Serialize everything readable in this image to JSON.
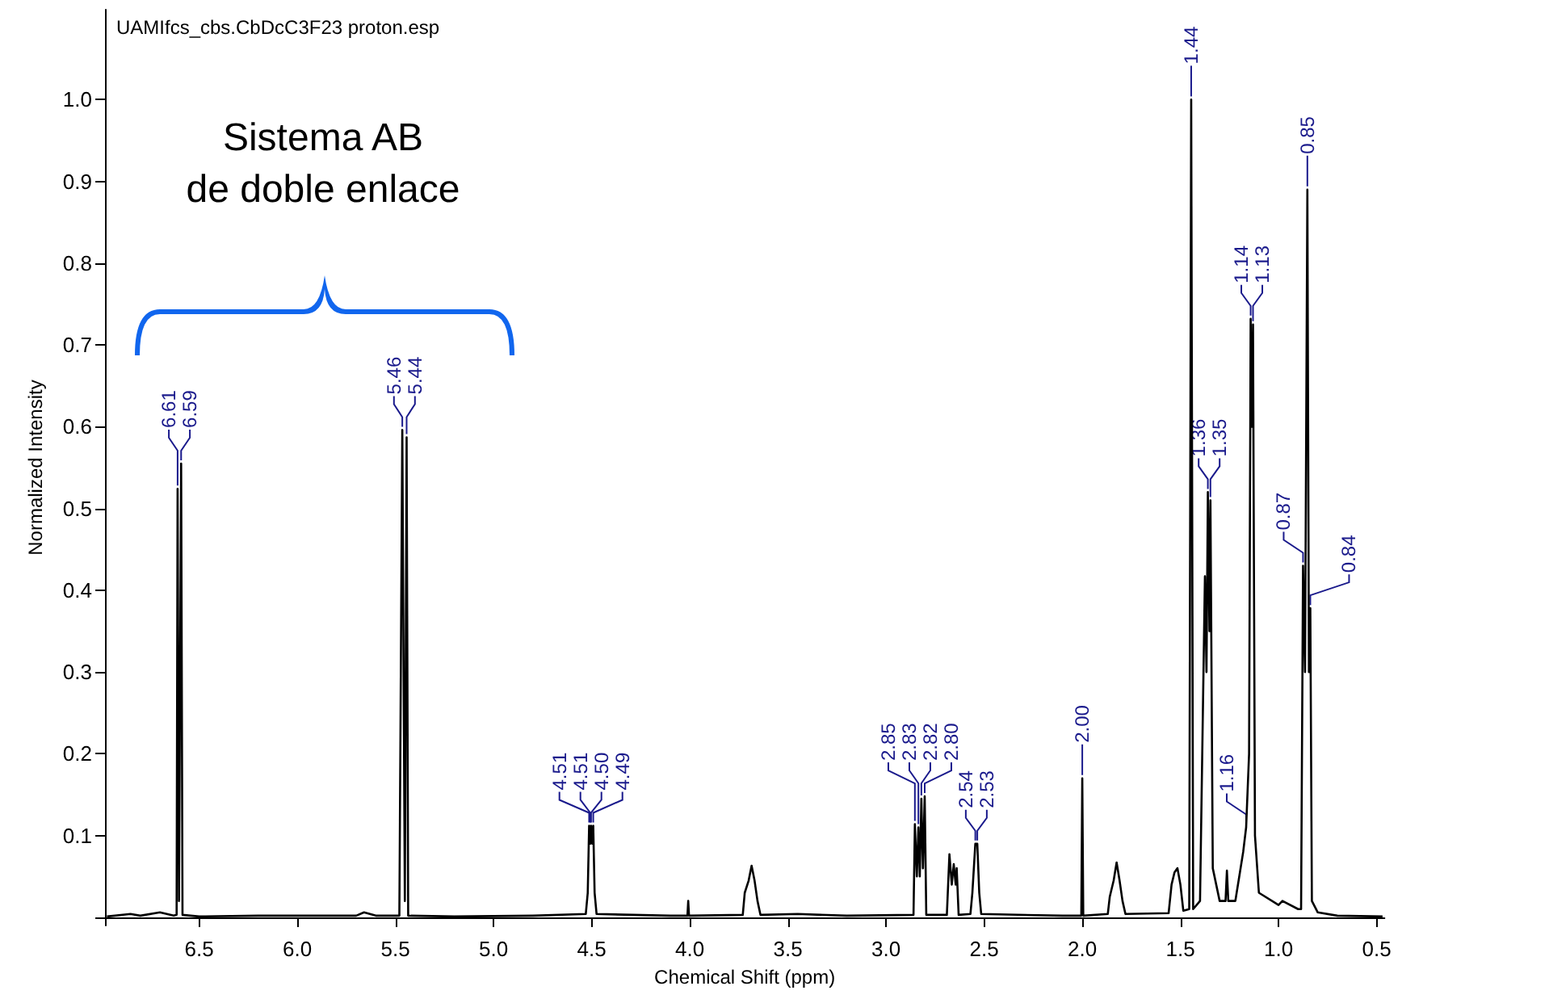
{
  "chart_data": {
    "type": "line",
    "title": "UAMIfcs_cbs.CbDcC3F23 proton.esp",
    "xlabel": "Chemical Shift (ppm)",
    "ylabel": "Normalized Intensity",
    "xlim": [
      6.98,
      0.46
    ],
    "xticks": [
      6.5,
      {
        "value": 6,
        "label": "6.0"
      },
      5.5,
      {
        "value": 5,
        "label": "5.0"
      },
      4.5,
      {
        "value": 4,
        "label": "4.0"
      },
      3.5,
      {
        "value": 3,
        "label": "3.0"
      },
      2.5,
      {
        "value": 2,
        "label": "2.0"
      },
      1.5,
      {
        "value": 1,
        "label": "1.0"
      },
      0.5
    ],
    "ylim": [
      -0.01,
      1.11
    ],
    "yticks": [
      {
        "value": 0,
        "label": null
      },
      0.1,
      0.2,
      0.3,
      0.4,
      0.5,
      0.6,
      0.7,
      0.8,
      0.9,
      {
        "value": 1,
        "label": "1.0"
      }
    ],
    "marker": "none",
    "color": "#000000",
    "x": [
      6.97,
      6.85,
      6.8,
      6.7,
      6.63,
      6.615,
      6.61,
      6.603,
      6.592,
      6.585,
      6.5,
      6.2,
      5.7,
      5.66,
      5.6,
      5.48,
      5.465,
      5.452,
      5.443,
      5.435,
      5.2,
      4.8,
      4.53,
      4.52,
      4.513,
      4.507,
      4.503,
      4.497,
      4.492,
      4.485,
      4.475,
      4.1,
      4.012,
      4.008,
      4.004,
      3.73,
      3.72,
      3.7,
      3.685,
      3.67,
      3.655,
      3.64,
      3.45,
      3.2,
      2.86,
      2.853,
      2.843,
      2.835,
      2.828,
      2.82,
      2.812,
      2.803,
      2.795,
      2.69,
      2.677,
      2.665,
      2.655,
      2.645,
      2.64,
      2.63,
      2.57,
      2.56,
      2.545,
      2.535,
      2.525,
      2.515,
      2.1,
      2.005,
      2.0,
      1.995,
      1.87,
      1.86,
      1.84,
      1.825,
      1.81,
      1.795,
      1.78,
      1.56,
      1.545,
      1.53,
      1.515,
      1.5,
      1.485,
      1.455,
      1.445,
      1.435,
      1.4,
      1.375,
      1.367,
      1.36,
      1.352,
      1.347,
      1.335,
      1.3,
      1.27,
      1.263,
      1.256,
      1.22,
      1.2,
      1.18,
      1.165,
      1.15,
      1.142,
      1.135,
      1.13,
      1.12,
      1.1,
      1.0,
      0.98,
      0.9,
      0.885,
      0.875,
      0.865,
      0.853,
      0.845,
      0.838,
      0.83,
      0.8,
      0.7,
      0.47
    ],
    "values": [
      0.001,
      0.004,
      0.002,
      0.006,
      0.002,
      0.003,
      0.524,
      0.02,
      0.555,
      0.003,
      0.001,
      0.002,
      0.002,
      0.006,
      0.002,
      0.002,
      0.596,
      0.02,
      0.587,
      0.002,
      0.001,
      0.002,
      0.004,
      0.03,
      0.112,
      0.09,
      0.112,
      0.09,
      0.112,
      0.03,
      0.004,
      0.002,
      0.002,
      0.02,
      0.002,
      0.003,
      0.03,
      0.045,
      0.063,
      0.045,
      0.02,
      0.003,
      0.004,
      0.002,
      0.003,
      0.114,
      0.05,
      0.11,
      0.05,
      0.145,
      0.06,
      0.148,
      0.003,
      0.003,
      0.077,
      0.04,
      0.065,
      0.04,
      0.06,
      0.003,
      0.004,
      0.03,
      0.09,
      0.09,
      0.03,
      0.004,
      0.002,
      0.002,
      0.17,
      0.002,
      0.004,
      0.025,
      0.045,
      0.067,
      0.045,
      0.02,
      0.004,
      0.005,
      0.04,
      0.055,
      0.06,
      0.04,
      0.008,
      0.01,
      1.0,
      0.01,
      0.02,
      0.417,
      0.3,
      0.52,
      0.35,
      0.51,
      0.06,
      0.02,
      0.02,
      0.057,
      0.02,
      0.02,
      0.05,
      0.08,
      0.11,
      0.2,
      0.732,
      0.6,
      0.725,
      0.1,
      0.03,
      0.015,
      0.02,
      0.01,
      0.01,
      0.43,
      0.3,
      0.89,
      0.3,
      0.378,
      0.02,
      0.006,
      0.002,
      0.001
    ],
    "annotations": [
      "Sistema AB\nde doble enlace",
      {
        "text": "6.61",
        "x": 6.61,
        "y": 0.524
      },
      {
        "text": "6.59",
        "x": 6.592,
        "y": 0.555
      },
      {
        "text": "5.46",
        "x": 5.465,
        "y": 0.596
      },
      {
        "text": "5.44",
        "x": 5.443,
        "y": 0.587
      },
      {
        "text": "4.51",
        "x": 4.513,
        "y": 0.112
      },
      {
        "text": "4.51",
        "x": 4.507,
        "y": 0.112
      },
      {
        "text": "4.50",
        "x": 4.503,
        "y": 0.112
      },
      {
        "text": "4.49",
        "x": 4.492,
        "y": 0.112
      },
      {
        "text": "2.85",
        "x": 2.853,
        "y": 0.114
      },
      {
        "text": "2.83",
        "x": 2.835,
        "y": 0.11
      },
      {
        "text": "2.82",
        "x": 2.82,
        "y": 0.145
      },
      {
        "text": "2.80",
        "x": 2.803,
        "y": 0.148
      },
      {
        "text": "2.54",
        "x": 2.545,
        "y": 0.09
      },
      {
        "text": "2.53",
        "x": 2.535,
        "y": 0.09
      },
      {
        "text": "2.00",
        "x": 2.0,
        "y": 0.17
      },
      {
        "text": "1.44",
        "x": 1.445,
        "y": 1.0
      },
      {
        "text": "1.36",
        "x": 1.36,
        "y": 0.52
      },
      {
        "text": "1.35",
        "x": 1.347,
        "y": 0.51
      },
      {
        "text": "1.16",
        "x": 1.165,
        "y": 0.11
      },
      {
        "text": "1.14",
        "x": 1.142,
        "y": 0.732
      },
      {
        "text": "1.13",
        "x": 1.13,
        "y": 0.725
      },
      {
        "text": "0.87",
        "x": 0.875,
        "y": 0.43
      },
      {
        "text": "0.85",
        "x": 0.853,
        "y": 0.89
      },
      {
        "text": "0.84",
        "x": 0.838,
        "y": 0.378
      }
    ]
  }
}
